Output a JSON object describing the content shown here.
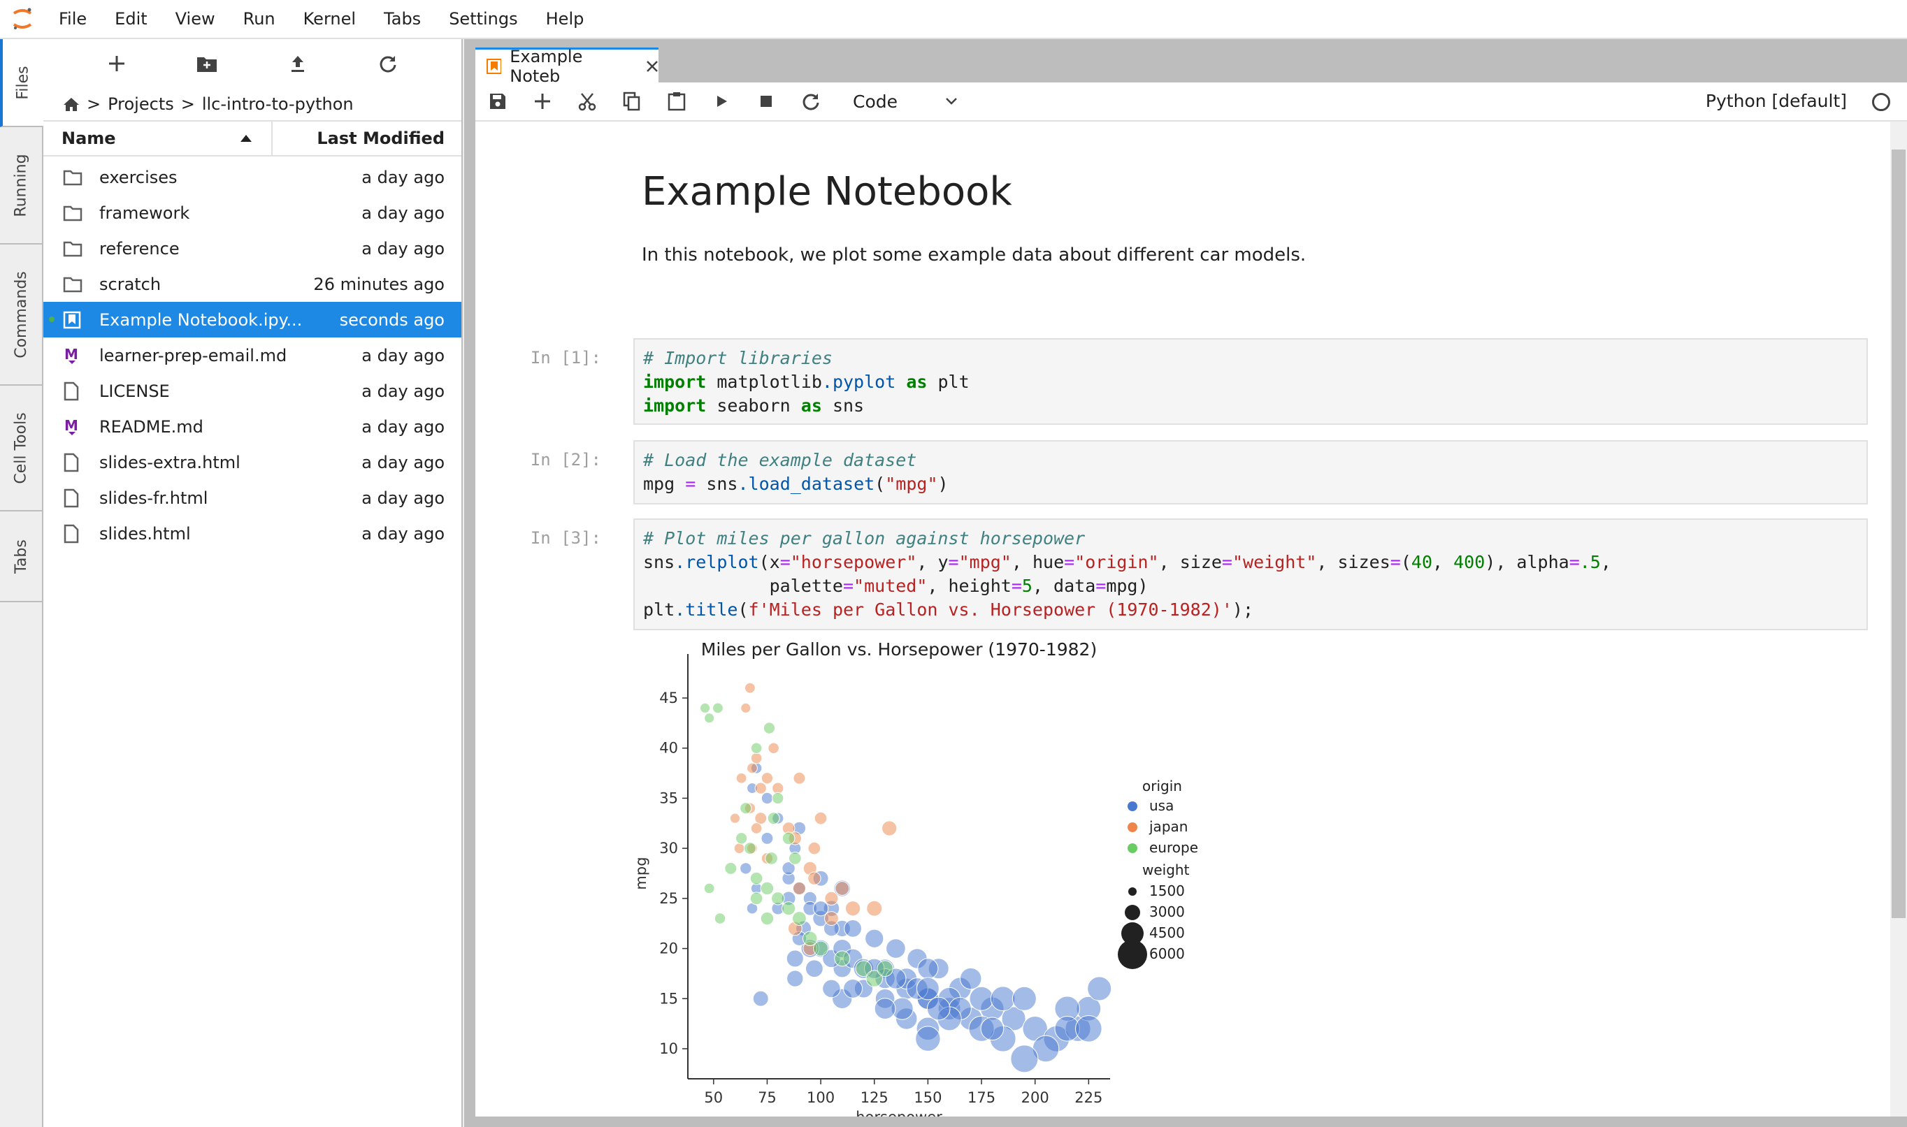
{
  "menubar": {
    "items": [
      "File",
      "Edit",
      "View",
      "Run",
      "Kernel",
      "Tabs",
      "Settings",
      "Help"
    ]
  },
  "side_tabs": [
    "Files",
    "Running",
    "Commands",
    "Cell Tools",
    "Tabs"
  ],
  "filebrowser": {
    "breadcrumb": [
      ">",
      "Projects",
      ">",
      "llc-intro-to-python"
    ],
    "header": {
      "name": "Name",
      "modified": "Last Modified"
    },
    "files": [
      {
        "name": "exercises",
        "modified": "a day ago",
        "type": "folder"
      },
      {
        "name": "framework",
        "modified": "a day ago",
        "type": "folder"
      },
      {
        "name": "reference",
        "modified": "a day ago",
        "type": "folder"
      },
      {
        "name": "scratch",
        "modified": "26 minutes ago",
        "type": "folder"
      },
      {
        "name": "Example Notebook.ipy...",
        "modified": "seconds ago",
        "type": "notebook",
        "selected": true
      },
      {
        "name": "learner-prep-email.md",
        "modified": "a day ago",
        "type": "markdown"
      },
      {
        "name": "LICENSE",
        "modified": "a day ago",
        "type": "file"
      },
      {
        "name": "README.md",
        "modified": "a day ago",
        "type": "markdown"
      },
      {
        "name": "slides-extra.html",
        "modified": "a day ago",
        "type": "file"
      },
      {
        "name": "slides-fr.html",
        "modified": "a day ago",
        "type": "file"
      },
      {
        "name": "slides.html",
        "modified": "a day ago",
        "type": "file"
      }
    ]
  },
  "doc_tab": {
    "label": "Example Noteb"
  },
  "nb_toolbar": {
    "cell_type": "Code",
    "kernel": "Python [default]"
  },
  "notebook": {
    "title": "Example Notebook",
    "description": "In this notebook, we plot some example data about different car models.",
    "prompts": [
      "In [1]:",
      "In [2]:",
      "In [3]:"
    ]
  },
  "chart_data": {
    "type": "scatter",
    "title": "Miles per Gallon vs. Horsepower (1970-1982)",
    "xlabel": "horsepower",
    "ylabel": "mpg",
    "xlim": [
      38,
      235
    ],
    "ylim": [
      7,
      48
    ],
    "xticks": [
      50,
      75,
      100,
      125,
      150,
      175,
      200,
      225
    ],
    "yticks": [
      10,
      15,
      20,
      25,
      30,
      35,
      40,
      45
    ],
    "legend": {
      "placement": "right",
      "hue_title": "origin",
      "hue": [
        {
          "name": "usa",
          "color": "#4878d0"
        },
        {
          "name": "japan",
          "color": "#ee854a"
        },
        {
          "name": "europe",
          "color": "#6acc64"
        }
      ],
      "size_title": "weight",
      "sizes": [
        1500,
        3000,
        4500,
        6000
      ]
    },
    "series": [
      {
        "name": "usa",
        "color": "#4878d0",
        "points": [
          [
            90,
            26,
            2300
          ],
          [
            95,
            25,
            2500
          ],
          [
            85,
            27,
            2400
          ],
          [
            105,
            24,
            3000
          ],
          [
            110,
            22,
            3100
          ],
          [
            100,
            20,
            3300
          ],
          [
            130,
            18,
            3600
          ],
          [
            140,
            16,
            4000
          ],
          [
            150,
            15,
            4200
          ],
          [
            160,
            14,
            4300
          ],
          [
            170,
            13,
            4400
          ],
          [
            180,
            14,
            4500
          ],
          [
            190,
            13,
            4600
          ],
          [
            200,
            12,
            4800
          ],
          [
            210,
            11,
            5000
          ],
          [
            220,
            12,
            4900
          ],
          [
            225,
            14,
            4700
          ],
          [
            230,
            16,
            4600
          ],
          [
            215,
            14,
            4800
          ],
          [
            205,
            10,
            5100
          ],
          [
            195,
            9,
            5300
          ],
          [
            185,
            11,
            5000
          ],
          [
            175,
            12,
            4900
          ],
          [
            165,
            16,
            4300
          ],
          [
            155,
            18,
            3900
          ],
          [
            145,
            19,
            3800
          ],
          [
            135,
            20,
            3700
          ],
          [
            125,
            21,
            3500
          ],
          [
            115,
            22,
            3300
          ],
          [
            100,
            23,
            3000
          ],
          [
            88,
            30,
            2200
          ],
          [
            80,
            33,
            2100
          ],
          [
            70,
            38,
            2000
          ],
          [
            68,
            36,
            1900
          ],
          [
            75,
            31,
            2200
          ],
          [
            85,
            28,
            2400
          ],
          [
            95,
            24,
            2600
          ],
          [
            105,
            22,
            2900
          ],
          [
            110,
            18,
            3400
          ],
          [
            120,
            16,
            3500
          ],
          [
            130,
            15,
            3700
          ],
          [
            140,
            13,
            4100
          ],
          [
            150,
            12,
            4400
          ],
          [
            150,
            15,
            4100
          ],
          [
            160,
            15,
            4300
          ],
          [
            175,
            15,
            4600
          ],
          [
            180,
            12,
            4400
          ],
          [
            185,
            15,
            4700
          ],
          [
            195,
            15,
            4600
          ],
          [
            150,
            11,
            4800
          ],
          [
            140,
            17,
            4000
          ],
          [
            130,
            17,
            3800
          ],
          [
            110,
            26,
            3100
          ],
          [
            100,
            27,
            2900
          ],
          [
            90,
            32,
            2400
          ],
          [
            75,
            35,
            2100
          ],
          [
            68,
            24,
            2000
          ],
          [
            88,
            19,
            3200
          ],
          [
            95,
            20,
            3400
          ],
          [
            97,
            18,
            3300
          ],
          [
            105,
            19,
            3400
          ],
          [
            92,
            22,
            2900
          ],
          [
            100,
            24,
            2800
          ],
          [
            85,
            25,
            2600
          ],
          [
            65,
            28,
            2100
          ],
          [
            70,
            26,
            2000
          ],
          [
            80,
            24,
            2300
          ],
          [
            90,
            21,
            2700
          ],
          [
            110,
            20,
            3500
          ],
          [
            115,
            19,
            3700
          ],
          [
            120,
            18,
            3800
          ],
          [
            135,
            17,
            3900
          ],
          [
            145,
            16,
            4100
          ],
          [
            150,
            18,
            3900
          ],
          [
            165,
            14,
            4300
          ],
          [
            170,
            17,
            4100
          ],
          [
            160,
            13,
            4600
          ],
          [
            138,
            14,
            4200
          ],
          [
            130,
            14,
            4000
          ],
          [
            125,
            18,
            3800
          ],
          [
            88,
            17,
            3100
          ],
          [
            110,
            15,
            3800
          ],
          [
            115,
            16,
            3600
          ],
          [
            105,
            16,
            3400
          ],
          [
            150,
            16,
            4300
          ],
          [
            155,
            14,
            4400
          ],
          [
            72,
            15,
            2900
          ],
          [
            215,
            12,
            4800
          ],
          [
            225,
            12,
            5100
          ]
        ]
      },
      {
        "name": "japan",
        "color": "#ee854a",
        "points": [
          [
            65,
            44,
            1800
          ],
          [
            67,
            46,
            1900
          ],
          [
            68,
            38,
            1900
          ],
          [
            70,
            39,
            2000
          ],
          [
            75,
            37,
            2100
          ],
          [
            72,
            33,
            2200
          ],
          [
            80,
            36,
            2100
          ],
          [
            85,
            32,
            2300
          ],
          [
            88,
            31,
            2400
          ],
          [
            97,
            30,
            2300
          ],
          [
            95,
            28,
            2500
          ],
          [
            90,
            26,
            2400
          ],
          [
            110,
            26,
            2600
          ],
          [
            115,
            24,
            2800
          ],
          [
            125,
            24,
            2900
          ],
          [
            132,
            32,
            2800
          ],
          [
            100,
            33,
            2300
          ],
          [
            62,
            30,
            1900
          ],
          [
            60,
            33,
            1800
          ],
          [
            63,
            37,
            1900
          ],
          [
            70,
            32,
            2000
          ],
          [
            75,
            29,
            2100
          ],
          [
            68,
            30,
            1900
          ],
          [
            67,
            34,
            2000
          ],
          [
            72,
            36,
            2100
          ],
          [
            88,
            22,
            2600
          ],
          [
            97,
            27,
            2400
          ],
          [
            105,
            23,
            2600
          ],
          [
            90,
            37,
            2200
          ],
          [
            78,
            40,
            2000
          ],
          [
            95,
            20,
            2600
          ],
          [
            105,
            25,
            2500
          ]
        ]
      },
      {
        "name": "europe",
        "color": "#6acc64",
        "points": [
          [
            46,
            44,
            1800
          ],
          [
            48,
            43,
            1800
          ],
          [
            52,
            44,
            1900
          ],
          [
            76,
            42,
            2100
          ],
          [
            70,
            40,
            2000
          ],
          [
            58,
            28,
            2200
          ],
          [
            65,
            34,
            2100
          ],
          [
            67,
            30,
            2200
          ],
          [
            70,
            27,
            2300
          ],
          [
            75,
            26,
            2400
          ],
          [
            77,
            29,
            2300
          ],
          [
            80,
            25,
            2400
          ],
          [
            85,
            24,
            2500
          ],
          [
            90,
            23,
            2600
          ],
          [
            95,
            21,
            2700
          ],
          [
            100,
            20,
            2800
          ],
          [
            110,
            19,
            2900
          ],
          [
            120,
            18,
            3000
          ],
          [
            125,
            17,
            3100
          ],
          [
            130,
            18,
            3000
          ],
          [
            80,
            35,
            2100
          ],
          [
            85,
            31,
            2300
          ],
          [
            70,
            25,
            2300
          ],
          [
            75,
            23,
            2400
          ],
          [
            88,
            29,
            2300
          ],
          [
            48,
            26,
            1900
          ],
          [
            53,
            23,
            2000
          ],
          [
            78,
            33,
            2200
          ],
          [
            63,
            31,
            2100
          ]
        ]
      }
    ]
  }
}
